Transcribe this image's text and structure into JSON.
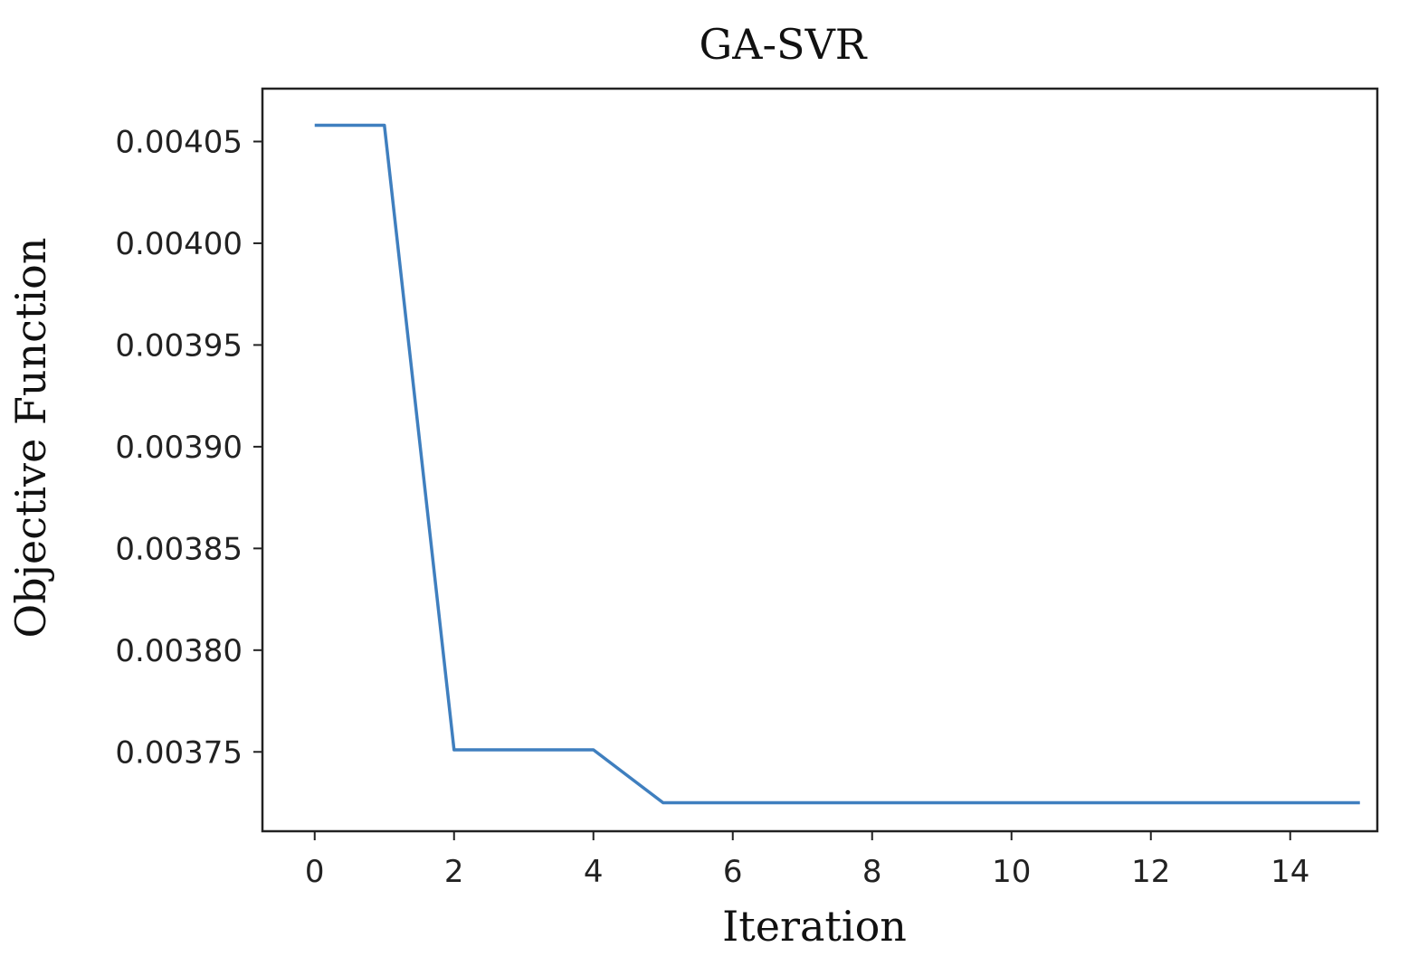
{
  "chart_data": {
    "type": "line",
    "title": "GA-SVR",
    "xlabel": "Iteration",
    "ylabel": "Objective Function",
    "xlim": [
      -0.75,
      15.25
    ],
    "ylim": [
      0.003711,
      0.004076
    ],
    "xticks": [
      0,
      2,
      4,
      6,
      8,
      10,
      12,
      14
    ],
    "xtick_labels": [
      "0",
      "2",
      "4",
      "6",
      "8",
      "10",
      "12",
      "14"
    ],
    "yticks": [
      0.00375,
      0.0038,
      0.00385,
      0.0039,
      0.00395,
      0.004,
      0.00405
    ],
    "ytick_labels": [
      "0.00375",
      "0.00380",
      "0.00385",
      "0.00390",
      "0.00395",
      "0.00400",
      "0.00405"
    ],
    "grid": false,
    "series": [
      {
        "color": "#3f7fbf",
        "x": [
          0,
          1,
          2,
          3,
          4,
          5,
          6,
          7,
          8,
          9,
          10,
          11,
          12,
          13,
          14,
          15
        ],
        "values": [
          0.004058,
          0.004058,
          0.003751,
          0.003751,
          0.003751,
          0.003725,
          0.003725,
          0.003725,
          0.003725,
          0.003725,
          0.003725,
          0.003725,
          0.003725,
          0.003725,
          0.003725,
          0.003725
        ]
      }
    ]
  }
}
